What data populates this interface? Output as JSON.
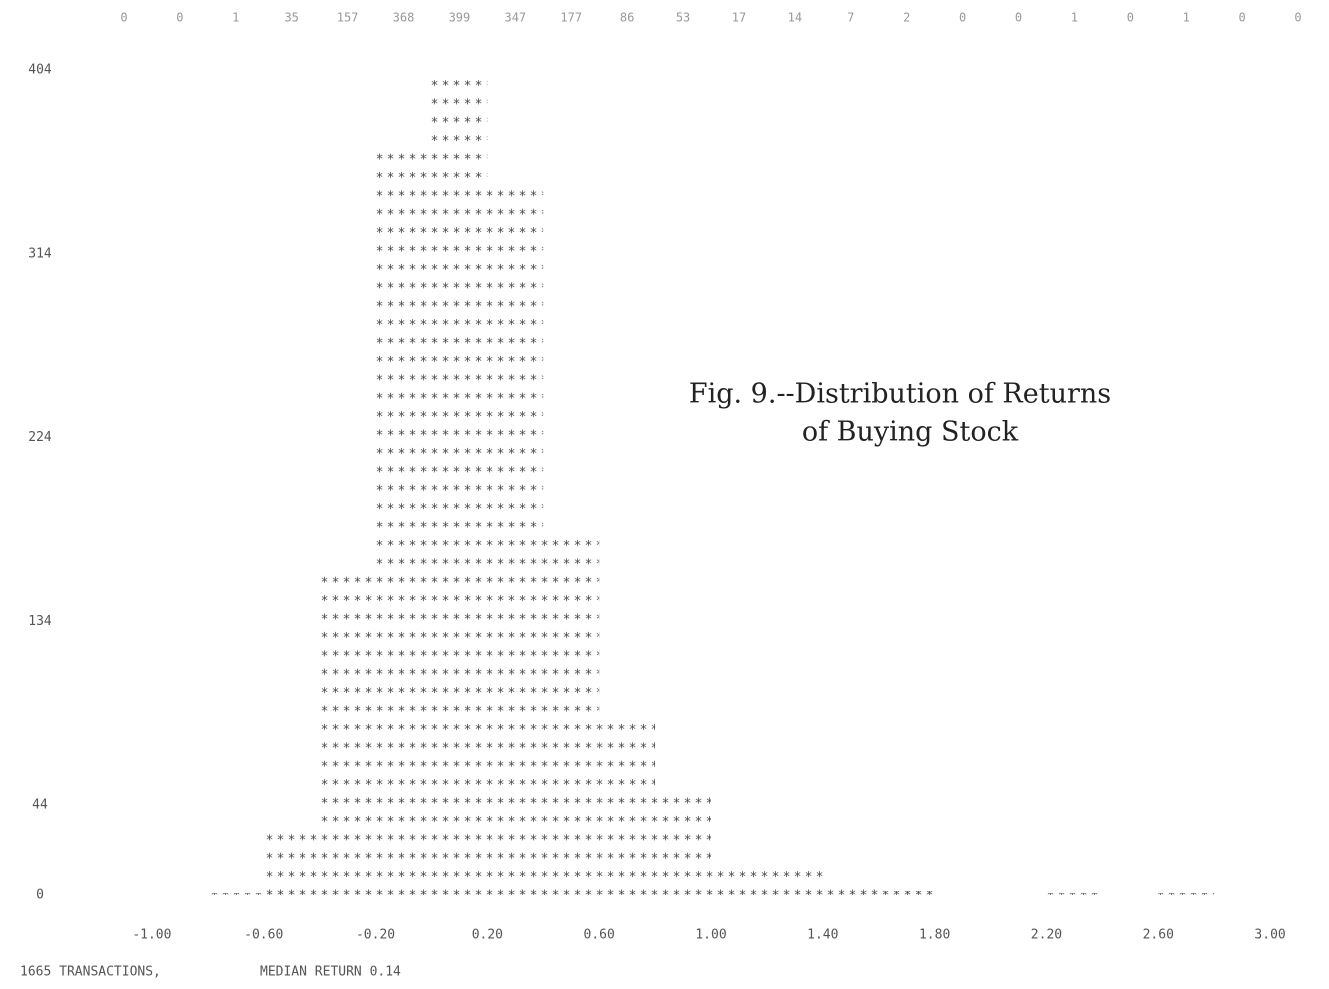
{
  "chart_data": {
    "type": "histogram",
    "annotation": [
      "Fig. 9.--Distribution of Returns",
      "of Buying Stock"
    ],
    "footer": [
      "1665 TRANSACTIONS,",
      "MEDIAN RETURN 0.14"
    ],
    "bins": [
      -1.2,
      -1.0,
      -0.8,
      -0.6,
      -0.4,
      -0.2,
      0.0,
      0.2,
      0.4,
      0.6,
      0.8,
      1.0,
      1.2,
      1.4,
      1.6,
      1.8,
      2.0,
      2.2,
      2.4,
      2.6,
      2.8,
      3.0,
      3.2
    ],
    "counts": [
      0,
      0,
      1,
      35,
      157,
      368,
      399,
      347,
      177,
      86,
      53,
      17,
      14,
      7,
      2,
      0,
      0,
      1,
      0,
      1,
      0,
      0
    ],
    "xlim": [
      -1.2,
      3.2
    ],
    "xticks": [
      {
        "value": -1,
        "label": "-1.00"
      },
      {
        "value": -0.6,
        "label": "-0.60"
      },
      {
        "value": -0.2,
        "label": "-0.20"
      },
      {
        "value": 0.2,
        "label": "0.20"
      },
      {
        "value": 0.6,
        "label": "0.60"
      },
      {
        "value": 1,
        "label": "1.00"
      },
      {
        "value": 1.4,
        "label": "1.40"
      },
      {
        "value": 1.8,
        "label": "1.80"
      },
      {
        "value": 2.2,
        "label": "2.20"
      },
      {
        "value": 2.6,
        "label": "2.60"
      },
      {
        "value": 3,
        "label": "3.00"
      }
    ],
    "ylim": [
      0,
      404
    ],
    "yticks": [
      0,
      44,
      134,
      224,
      314,
      404
    ],
    "color": "#444"
  }
}
